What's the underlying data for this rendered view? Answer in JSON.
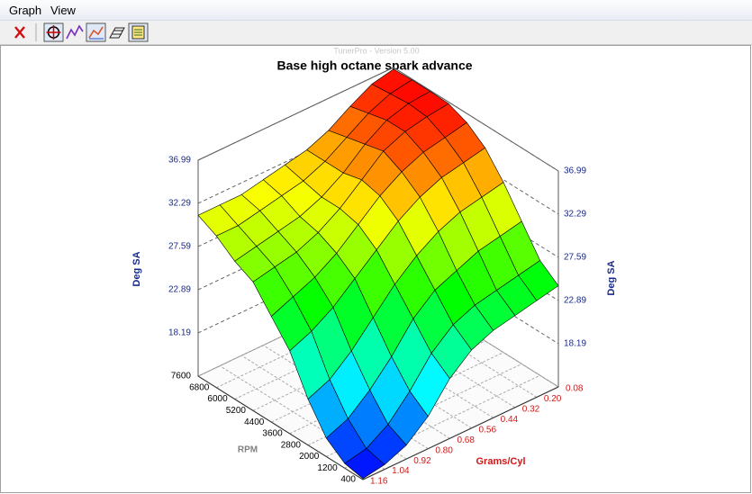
{
  "menu": [
    "Graph",
    "View"
  ],
  "chart_data": {
    "type": "surface",
    "title": "Base high octane spark advance",
    "watermark": "TunerPro - Version 5.00",
    "x_label": "RPM",
    "y_label": "Grams/Cyl",
    "z_label": "Deg SA",
    "x": [
      400,
      1200,
      2000,
      2800,
      3600,
      4400,
      5200,
      6000,
      6800,
      7600
    ],
    "y": [
      0.08,
      0.2,
      0.32,
      0.44,
      0.56,
      0.68,
      0.8,
      0.92,
      1.04,
      1.16
    ],
    "z": [
      [
        24.5,
        24,
        23.5,
        23,
        22,
        20,
        17,
        15,
        14,
        13.6
      ],
      [
        26,
        25.5,
        25,
        24.5,
        23.5,
        21.5,
        18.5,
        16,
        14.5,
        14
      ],
      [
        29,
        28.5,
        28,
        27,
        26,
        24,
        21,
        18.5,
        16.5,
        15.5
      ],
      [
        32,
        31.5,
        31,
        30,
        28.5,
        26.5,
        24,
        21.5,
        19.5,
        18.5
      ],
      [
        34.5,
        34,
        33.5,
        32.5,
        31,
        29,
        27,
        25,
        23.5,
        22.5
      ],
      [
        36,
        35.5,
        35,
        34,
        32.5,
        30.5,
        28.5,
        27,
        26,
        25
      ],
      [
        36.8,
        36.5,
        36,
        35,
        33,
        31,
        29.5,
        28.5,
        28,
        27.5
      ],
      [
        36.9,
        36.7,
        36,
        34.5,
        32.5,
        31,
        30,
        29.5,
        29,
        28.5
      ],
      [
        36.9,
        36.5,
        35.5,
        34,
        32.5,
        31.5,
        31,
        30.5,
        30,
        30
      ],
      [
        36.8,
        36.3,
        35,
        33.5,
        32.5,
        32,
        31.5,
        31,
        31,
        31
      ]
    ],
    "xlim": [
      400,
      7600
    ],
    "ylim": [
      0.08,
      1.16
    ],
    "zlim": [
      13.49,
      36.99
    ],
    "xticks": [
      400,
      1200,
      2000,
      2800,
      3600,
      4400,
      5200,
      6000,
      6800,
      7600
    ],
    "yticks": [
      0.08,
      {
        "value": 0.2,
        "label": "0.20"
      },
      0.32,
      0.44,
      0.56,
      0.68,
      {
        "value": 0.8,
        "label": "0.80"
      },
      0.92,
      1.04,
      1.16
    ],
    "zticks": [
      18.19,
      22.89,
      27.59,
      32.29,
      36.99
    ],
    "colormap": [
      "#0000ff",
      "#00ffff",
      "#00ff00",
      "#ffff00",
      "#ff0000"
    ]
  }
}
